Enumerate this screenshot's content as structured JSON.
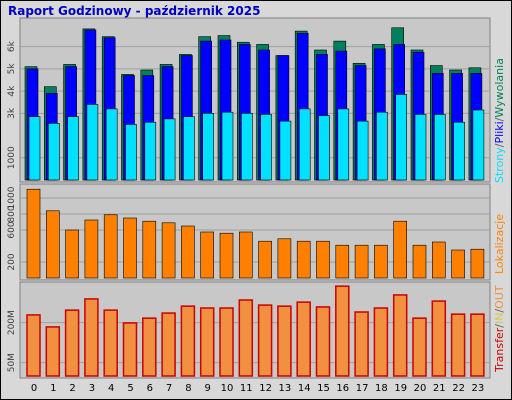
{
  "chart_data": [
    {
      "type": "bar",
      "title": "Raport Godzinowy -   październik 2025",
      "series": [
        {
          "name": "Wywolania",
          "color": "#00805c",
          "values": [
            5100,
            4200,
            5200,
            6800,
            6450,
            4750,
            4950,
            5200,
            5650,
            6450,
            6500,
            6200,
            6100,
            5600,
            6700,
            5850,
            6250,
            5250,
            6100,
            6850,
            5850,
            5150,
            4950,
            5050
          ]
        },
        {
          "name": "Pliki",
          "color": "#0000ff",
          "values": [
            5000,
            3900,
            5100,
            6750,
            6400,
            4700,
            4700,
            5100,
            5600,
            6250,
            6300,
            6100,
            5850,
            5600,
            6600,
            5650,
            5800,
            5150,
            5900,
            6100,
            5750,
            4800,
            4800,
            4800
          ]
        },
        {
          "name": "Strony",
          "color": "#00e0ff",
          "values": [
            2850,
            2550,
            2850,
            3400,
            3200,
            2500,
            2600,
            2750,
            2850,
            3000,
            3050,
            3000,
            2950,
            2650,
            3200,
            2900,
            3200,
            2650,
            3050,
            3850,
            2950,
            2950,
            2600,
            3150
          ]
        }
      ],
      "legend_separator": "/",
      "ylim": [
        0,
        7200
      ],
      "yticks": [
        {
          "value": 1000,
          "label": "1000"
        },
        {
          "value": 3000,
          "label": "3k"
        },
        {
          "value": 4000,
          "label": "4k"
        },
        {
          "value": 5000,
          "label": "5k"
        },
        {
          "value": 6000,
          "label": "6k"
        }
      ],
      "grid": true
    },
    {
      "type": "bar",
      "series": [
        {
          "name": "Lokalizacje",
          "color": "#ff8000",
          "values": [
            1110,
            840,
            600,
            725,
            790,
            750,
            710,
            690,
            650,
            575,
            560,
            575,
            460,
            490,
            460,
            460,
            410,
            410,
            410,
            710,
            410,
            450,
            350,
            360
          ]
        }
      ],
      "ylim": [
        0,
        1150
      ],
      "yticks": [
        200,
        600,
        800,
        1000
      ],
      "grid": true
    },
    {
      "type": "bar",
      "categories": [
        "0",
        "1",
        "2",
        "3",
        "4",
        "5",
        "6",
        "7",
        "8",
        "9",
        "10",
        "11",
        "12",
        "13",
        "14",
        "15",
        "16",
        "17",
        "18",
        "19",
        "20",
        "21",
        "22",
        "23"
      ],
      "series": [
        {
          "name": "Transfer",
          "color": "#cc0000",
          "values": [
            229,
            184,
            247,
            289,
            247,
            199,
            217,
            236,
            262,
            255,
            255,
            285,
            266,
            262,
            277,
            259,
            337,
            240,
            255,
            304,
            217,
            281,
            232,
            232
          ]
        }
      ],
      "legend_separator": "/",
      "legend_extra": [
        {
          "text": "IN",
          "color": "#d8c850"
        },
        {
          "text": "OUT",
          "color": "#f09040"
        }
      ],
      "ylim": [
        0,
        345
      ],
      "yticks": [
        {
          "value": 50,
          "label": "50M"
        },
        {
          "value": 200,
          "label": "200M"
        }
      ],
      "grid": true
    }
  ]
}
